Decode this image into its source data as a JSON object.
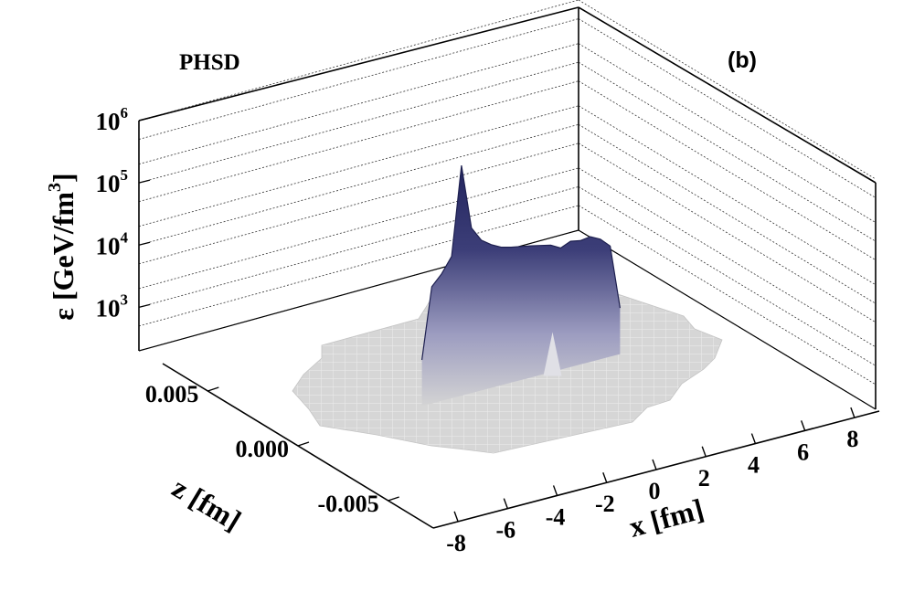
{
  "chart_data": {
    "type": "surface3d",
    "title": "PHSD",
    "panel_label": "(b)",
    "zlabel": "ε [GeV/fm³]",
    "zlabel_parts": {
      "symbol": "ε",
      "unit_base": "[GeV/fm",
      "unit_sup": "3",
      "unit_close": "]"
    },
    "zscale": "log",
    "zlim": [
      200,
      1000000
    ],
    "zticks": [
      {
        "base": "10",
        "exp": "3",
        "value": 1000
      },
      {
        "base": "10",
        "exp": "4",
        "value": 10000
      },
      {
        "base": "10",
        "exp": "5",
        "value": 100000
      },
      {
        "base": "10",
        "exp": "6",
        "value": 1000000
      }
    ],
    "xlabel": "x [fm]",
    "xlim": [
      -9,
      9
    ],
    "xticks": [
      "-8",
      "-6",
      "-4",
      "-2",
      "0",
      "2",
      "4",
      "6",
      "8"
    ],
    "xtick_values": [
      -8,
      -6,
      -4,
      -2,
      0,
      2,
      4,
      6,
      8
    ],
    "ylabel": "z [fm]",
    "ylim": [
      -0.0075,
      0.0075
    ],
    "yticks": [
      "-0.005",
      "0.000",
      "0.005"
    ],
    "ytick_values": [
      -0.005,
      0.0,
      0.005
    ],
    "grid": true,
    "surface_color_top": "#23255e",
    "surface_color_base": "#d4d4d4",
    "series": [
      {
        "x": [
          -4.0,
          -3.6,
          -3.2,
          -2.8,
          -2.4,
          -2.0,
          -1.6,
          -1.2,
          -0.8,
          -0.4,
          0.0,
          0.4,
          0.8,
          1.2,
          1.6,
          2.0,
          2.4,
          2.8,
          3.2,
          3.6,
          4.0
        ],
        "values": [
          1100,
          15000,
          22000,
          38000,
          1000000,
          90000,
          52000,
          40000,
          33000,
          30000,
          28000,
          26000,
          24000,
          22000,
          18000,
          21000,
          19500,
          20500,
          17000,
          12000,
          1100
        ]
      }
    ]
  }
}
